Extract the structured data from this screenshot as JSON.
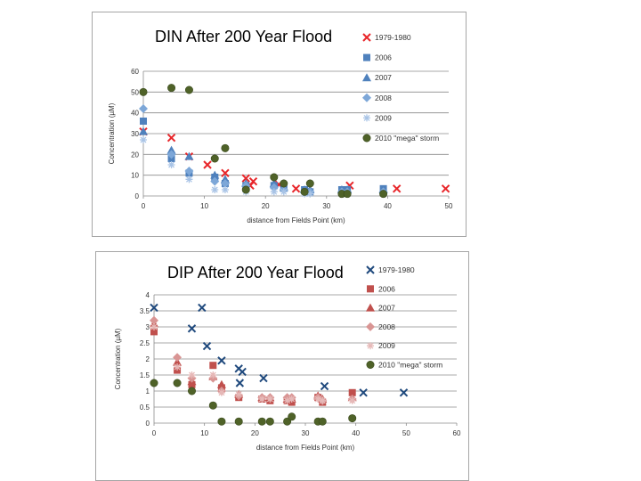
{
  "chart_data": [
    {
      "type": "scatter",
      "title": "DIN After 200 Year Flood",
      "xlabel": "distance from Fields Point (km)",
      "ylabel": "Concentration (µM)",
      "xlim": [
        0,
        50
      ],
      "ylim": [
        0,
        60
      ],
      "xticks": [
        "0",
        "10",
        "20",
        "30",
        "40",
        "50"
      ],
      "yticks": [
        "0",
        "10",
        "20",
        "30",
        "40",
        "50",
        "60"
      ],
      "grid": true,
      "legend_position": "right",
      "series": [
        {
          "name": "1979-1980",
          "marker": "x",
          "color": "#e8262a",
          "points": [
            [
              0,
              31
            ],
            [
              4.6,
              28
            ],
            [
              7.5,
              19
            ],
            [
              10.5,
              15
            ],
            [
              13.4,
              11
            ],
            [
              16.8,
              8.5
            ],
            [
              17.5,
              5
            ],
            [
              18,
              7
            ],
            [
              22.2,
              5.5
            ],
            [
              25,
              3.5
            ],
            [
              33.8,
              5
            ],
            [
              41.5,
              3.5
            ],
            [
              49.5,
              3.5
            ]
          ]
        },
        {
          "name": "2006",
          "marker": "square",
          "color": "#4f81bd",
          "points": [
            [
              0,
              36
            ],
            [
              4.6,
              18
            ],
            [
              7.5,
              11
            ],
            [
              11.7,
              9
            ],
            [
              13.4,
              6
            ],
            [
              16.8,
              5
            ],
            [
              21.4,
              5
            ],
            [
              23,
              4
            ],
            [
              26.4,
              3
            ],
            [
              27.3,
              2
            ],
            [
              32.5,
              3
            ],
            [
              33.4,
              3
            ],
            [
              39.3,
              3.5
            ]
          ]
        },
        {
          "name": "2007",
          "marker": "triangle",
          "color": "#4f81bd",
          "points": [
            [
              0,
              31
            ],
            [
              4.6,
              22
            ],
            [
              7.5,
              19
            ],
            [
              11.7,
              10
            ],
            [
              13.4,
              8
            ],
            [
              16.8,
              6
            ],
            [
              21.4,
              6
            ],
            [
              23,
              4
            ],
            [
              26.4,
              3
            ],
            [
              27.3,
              3
            ],
            [
              32.5,
              3
            ],
            [
              33.4,
              3
            ],
            [
              39.3,
              3
            ]
          ]
        },
        {
          "name": "2008",
          "marker": "diamond",
          "color": "#7da7d8",
          "points": [
            [
              0,
              42
            ],
            [
              4.6,
              20
            ],
            [
              7.5,
              12
            ],
            [
              11.7,
              7
            ],
            [
              13.4,
              6
            ],
            [
              16.8,
              5
            ],
            [
              21.4,
              4
            ],
            [
              23,
              3
            ],
            [
              26.4,
              2
            ],
            [
              27.3,
              2
            ],
            [
              32.5,
              2
            ],
            [
              33.4,
              2
            ],
            [
              39.3,
              2
            ]
          ]
        },
        {
          "name": "2009",
          "marker": "star",
          "color": "#a9c4e6",
          "points": [
            [
              0,
              27
            ],
            [
              4.6,
              15
            ],
            [
              7.5,
              8
            ],
            [
              11.7,
              3
            ],
            [
              13.4,
              3
            ],
            [
              16.8,
              2
            ],
            [
              21.4,
              2
            ],
            [
              23,
              2
            ],
            [
              26.4,
              1
            ],
            [
              27.3,
              1
            ],
            [
              32.5,
              1
            ],
            [
              33.4,
              1
            ],
            [
              39.3,
              1
            ]
          ]
        },
        {
          "name": "2010 \"mega\" storm",
          "marker": "circle",
          "color": "#4f6228",
          "points": [
            [
              0,
              50
            ],
            [
              4.6,
              52
            ],
            [
              7.5,
              51
            ],
            [
              11.7,
              18
            ],
            [
              13.4,
              23
            ],
            [
              16.8,
              3
            ],
            [
              21.4,
              9
            ],
            [
              23,
              6
            ],
            [
              26.4,
              2
            ],
            [
              27.3,
              6
            ],
            [
              32.5,
              1
            ],
            [
              33.4,
              1
            ],
            [
              39.3,
              1
            ]
          ]
        }
      ]
    },
    {
      "type": "scatter",
      "title": "DIP After 200 Year Flood",
      "xlabel": "distance from Fields Point (km)",
      "ylabel": "Concentration (µM)",
      "xlim": [
        0,
        60
      ],
      "ylim": [
        0,
        4
      ],
      "xticks": [
        "0",
        "10",
        "20",
        "30",
        "40",
        "50",
        "60"
      ],
      "yticks": [
        "0",
        "0.5",
        "1",
        "1.5",
        "2",
        "2.5",
        "3",
        "3.5",
        "4"
      ],
      "grid": true,
      "legend_position": "right",
      "series": [
        {
          "name": "1979-1980",
          "marker": "x",
          "color": "#1f497d",
          "points": [
            [
              0,
              3.6
            ],
            [
              9.5,
              3.6
            ],
            [
              7.5,
              2.95
            ],
            [
              10.5,
              2.4
            ],
            [
              13.4,
              1.95
            ],
            [
              16.8,
              1.7
            ],
            [
              17.5,
              1.6
            ],
            [
              17,
              1.25
            ],
            [
              21.7,
              1.4
            ],
            [
              33.8,
              1.15
            ],
            [
              41.5,
              0.95
            ],
            [
              49.5,
              0.95
            ]
          ]
        },
        {
          "name": "2006",
          "marker": "square",
          "color": "#c0504d",
          "points": [
            [
              0,
              2.85
            ],
            [
              4.6,
              1.65
            ],
            [
              7.5,
              1.2
            ],
            [
              11.7,
              1.8
            ],
            [
              13.4,
              1.1
            ],
            [
              16.8,
              0.8
            ],
            [
              21.4,
              0.75
            ],
            [
              23,
              0.7
            ],
            [
              26.4,
              0.7
            ],
            [
              27.3,
              0.65
            ],
            [
              32.5,
              0.8
            ],
            [
              33.4,
              0.65
            ],
            [
              39.3,
              0.95
            ]
          ]
        },
        {
          "name": "2007",
          "marker": "triangle",
          "color": "#c0504d",
          "points": [
            [
              0,
              3.1
            ],
            [
              4.6,
              1.9
            ],
            [
              7.5,
              1.3
            ],
            [
              11.7,
              1.45
            ],
            [
              13.4,
              1.2
            ],
            [
              16.8,
              0.9
            ],
            [
              21.4,
              0.8
            ],
            [
              23,
              0.8
            ],
            [
              26.4,
              0.75
            ],
            [
              27.3,
              0.75
            ],
            [
              32.5,
              0.85
            ],
            [
              33.4,
              0.75
            ],
            [
              39.3,
              0.8
            ]
          ]
        },
        {
          "name": "2008",
          "marker": "diamond",
          "color": "#d99594",
          "points": [
            [
              0,
              3.2
            ],
            [
              4.6,
              2.05
            ],
            [
              7.5,
              1.4
            ],
            [
              11.7,
              1.4
            ],
            [
              13.4,
              1.0
            ],
            [
              16.8,
              0.85
            ],
            [
              21.4,
              0.8
            ],
            [
              23,
              0.8
            ],
            [
              26.4,
              0.8
            ],
            [
              27.3,
              0.8
            ],
            [
              32.5,
              0.8
            ],
            [
              33.4,
              0.7
            ],
            [
              39.3,
              0.75
            ]
          ]
        },
        {
          "name": "2009",
          "marker": "star",
          "color": "#e6b9b8",
          "points": [
            [
              0,
              3.0
            ],
            [
              4.6,
              1.75
            ],
            [
              7.5,
              1.5
            ],
            [
              11.7,
              1.5
            ],
            [
              13.4,
              0.95
            ],
            [
              16.8,
              0.9
            ],
            [
              21.4,
              0.75
            ],
            [
              23,
              0.75
            ],
            [
              26.4,
              0.7
            ],
            [
              27.3,
              0.75
            ],
            [
              32.5,
              0.75
            ],
            [
              33.4,
              0.7
            ],
            [
              39.3,
              0.7
            ]
          ]
        },
        {
          "name": "2010 \"mega\" storm",
          "marker": "circle",
          "color": "#4f6228",
          "points": [
            [
              0,
              1.25
            ],
            [
              4.6,
              1.25
            ],
            [
              7.5,
              1.0
            ],
            [
              11.7,
              0.55
            ],
            [
              13.4,
              0.05
            ],
            [
              16.8,
              0.05
            ],
            [
              21.4,
              0.05
            ],
            [
              23,
              0.05
            ],
            [
              26.4,
              0.05
            ],
            [
              27.3,
              0.2
            ],
            [
              32.5,
              0.05
            ],
            [
              33.4,
              0.05
            ],
            [
              39.3,
              0.15
            ]
          ]
        }
      ]
    }
  ]
}
